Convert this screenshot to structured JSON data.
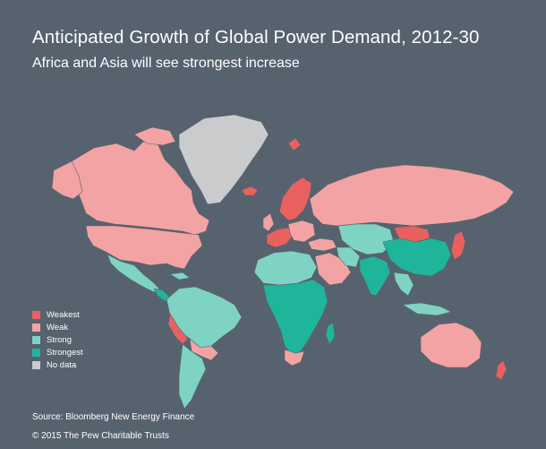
{
  "header": {
    "title": "Anticipated Growth of Global Power Demand, 2012-30",
    "subtitle": "Africa and Asia will see strongest increase"
  },
  "legend": {
    "items": [
      {
        "label": "Weakest",
        "color": "#e8615e"
      },
      {
        "label": "Weak",
        "color": "#f3a3a3"
      },
      {
        "label": "Strong",
        "color": "#7fd3c3"
      },
      {
        "label": "Strongest",
        "color": "#1fb59a"
      },
      {
        "label": "No data",
        "color": "#c9cbcd"
      }
    ]
  },
  "footer": {
    "source": "Source: Bloomberg New Energy Finance",
    "copyright": "© 2015 The Pew Charitable Trusts"
  },
  "colors": {
    "background": "#57626f",
    "weakest": "#e8615e",
    "weak": "#f3a3a3",
    "strong": "#7fd3c3",
    "strongest": "#1fb59a",
    "no_data": "#c9cbcd"
  }
}
